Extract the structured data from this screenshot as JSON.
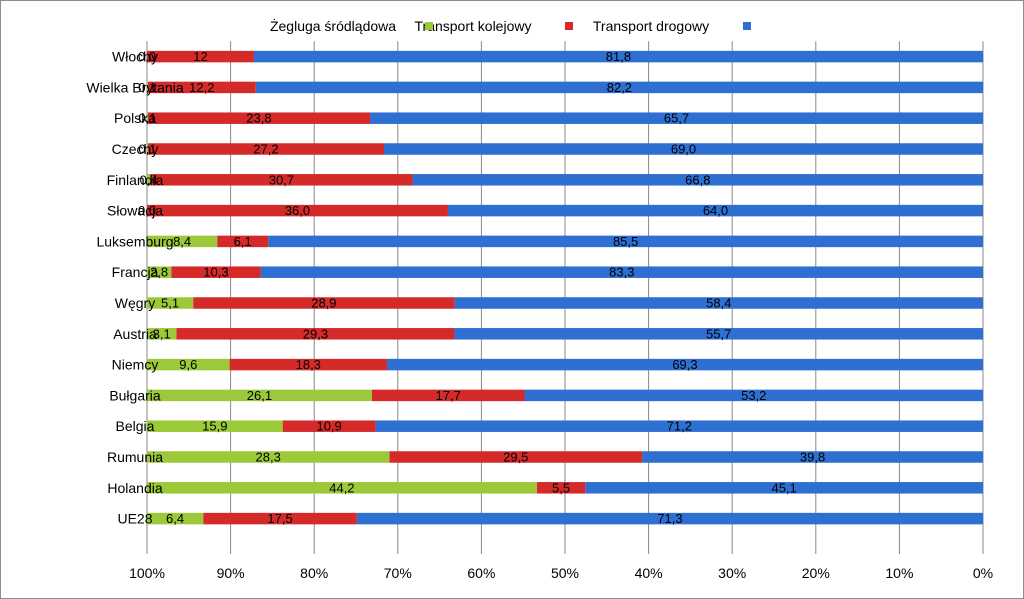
{
  "chart_data": {
    "type": "bar",
    "orientation": "horizontal",
    "stacked": true,
    "percent_stacked": true,
    "categories": [
      "UE28",
      "Holandia",
      "Rumunia",
      "Belgia",
      "Bułgaria",
      "Niemcy",
      "Austria",
      "Węgry",
      "Francja",
      "Luksemburg",
      "Słowacja",
      "Finlandia",
      "Czechy",
      "Polska",
      "Wielka Brytania",
      "Włochy"
    ],
    "series": [
      {
        "name": "Transport drogowy",
        "color": "#2e6fd1",
        "values": [
          71.3,
          45.1,
          39.8,
          71.2,
          53.2,
          69.3,
          55.7,
          58.4,
          83.3,
          85.5,
          64.0,
          66.8,
          69.0,
          65.7,
          82.2,
          81.8
        ],
        "labels": [
          "71,3",
          "45,1",
          "39,8",
          "71,2",
          "53,2",
          "69,3",
          "55,7",
          "58,4",
          "83,3",
          "85,5",
          "64,0",
          "66,8",
          "69,0",
          "65,7",
          "82,2",
          "81,8"
        ]
      },
      {
        "name": "Transport kolejowy",
        "color": "#d42a2a",
        "values": [
          17.5,
          5.5,
          29.5,
          10.9,
          17.7,
          18.3,
          29.3,
          28.9,
          10.3,
          6.1,
          36.0,
          30.7,
          27.2,
          23.8,
          12.2,
          12.0
        ],
        "labels": [
          "17,5",
          "5,5",
          "29,5",
          "10,9",
          "17,7",
          "18,3",
          "29,3",
          "28,9",
          "10,3",
          "6,1",
          "36,0",
          "30,7",
          "27,2",
          "23,8",
          "12,2",
          "12"
        ]
      },
      {
        "name": "Żegluga śródlądowa",
        "color": "#9bc93a",
        "values": [
          6.4,
          44.2,
          28.3,
          15.9,
          26.1,
          9.6,
          3.1,
          5.1,
          2.8,
          8.4,
          0.0,
          0.4,
          0.1,
          0.1,
          0.1,
          0.0
        ],
        "labels": [
          "6,4",
          "44,2",
          "28,3",
          "15,9",
          "26,1",
          "9,6",
          "3,1",
          "5,1",
          "2,8",
          "8,4",
          "0,0",
          "0,4",
          "0,1",
          "0,1",
          "0,1",
          "0,0"
        ]
      }
    ],
    "x_ticks": [
      "0%",
      "10%",
      "20%",
      "30%",
      "40%",
      "50%",
      "60%",
      "70%",
      "80%",
      "90%",
      "100%"
    ],
    "xlim": [
      0,
      100
    ],
    "grid": true,
    "legend_position": "top",
    "image_orientation": "rotated 180 degrees"
  }
}
